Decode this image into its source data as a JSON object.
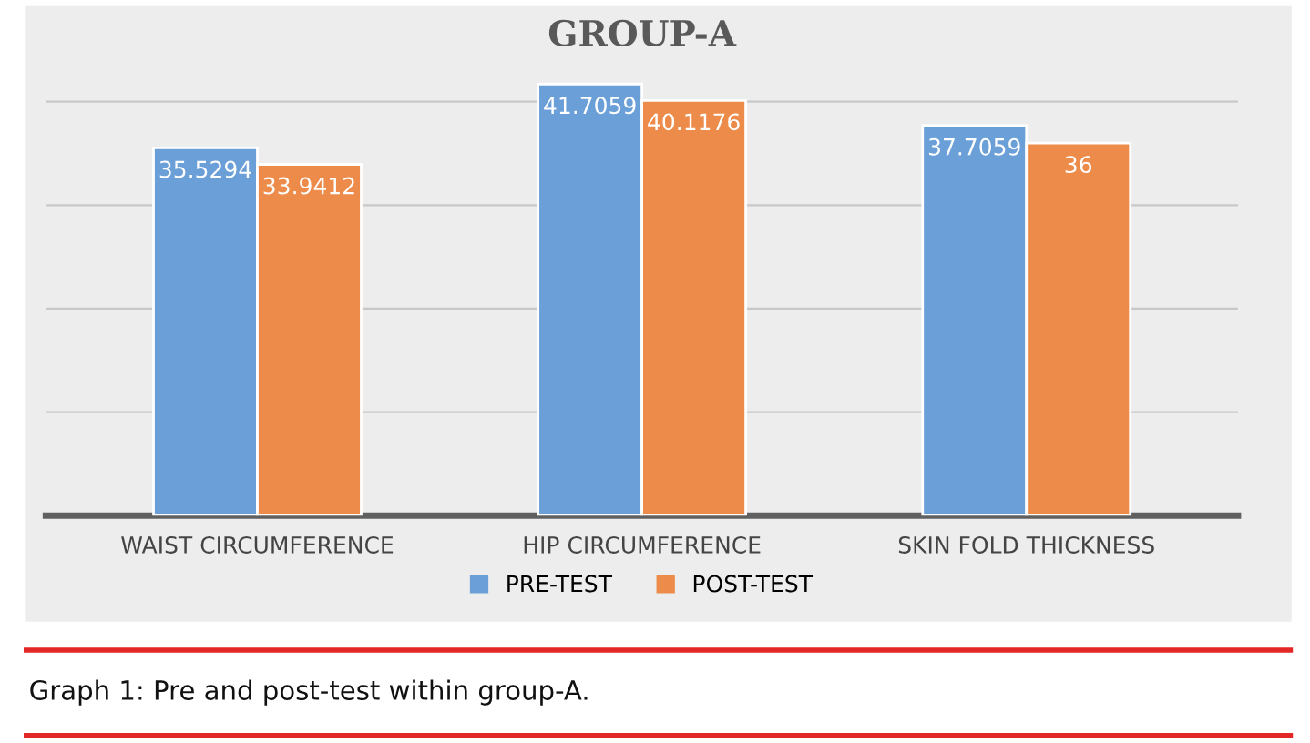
{
  "chart_data": {
    "type": "bar",
    "title": "GROUP-A",
    "categories": [
      "WAIST CIRCUMFERENCE",
      "HIP CIRCUMFERENCE",
      "SKIN FOLD THICKNESS"
    ],
    "series": [
      {
        "name": "PRE-TEST",
        "color": "#6a9fd8",
        "values": [
          35.5294,
          41.7059,
          37.7059
        ]
      },
      {
        "name": "POST-TEST",
        "color": "#ed8c4a",
        "values": [
          33.9412,
          40.1176,
          36
        ]
      }
    ],
    "yticks": [
      {
        "value": 10,
        "label": null
      },
      {
        "value": 20,
        "label": null
      },
      {
        "value": 30,
        "label": null
      },
      {
        "value": 40,
        "label": null
      }
    ],
    "grid": "y",
    "legend": "bottom",
    "data_labels": true,
    "tick_labels": "x",
    "annotations": [
      "Graph 1: Pre and post-test within group-A."
    ]
  }
}
